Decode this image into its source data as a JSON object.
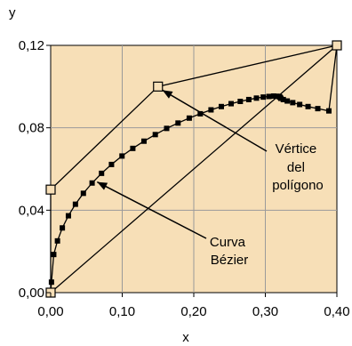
{
  "colors": {
    "plot_background": "#f7dfb7",
    "grid": "#9a9a9a",
    "line": "#000000",
    "vertex_fill": "#f7dfb7",
    "curve_marker": "#000000"
  },
  "chart_data": {
    "type": "line",
    "title": "",
    "xlabel": "x",
    "ylabel": "y",
    "xlim": [
      0.0,
      0.4
    ],
    "ylim": [
      0.0,
      0.12
    ],
    "grid": true,
    "x_ticks": [
      0.0,
      0.1,
      0.2,
      0.3,
      0.4
    ],
    "x_tick_labels": [
      "0,00",
      "0,10",
      "0,20",
      "0,30",
      "0,40"
    ],
    "y_ticks": [
      0.0,
      0.04,
      0.08,
      0.12
    ],
    "y_tick_labels": [
      "0,00",
      "0,04",
      "0,08",
      "0,12"
    ],
    "control_polygon": {
      "x": [
        0.0,
        0.0,
        0.15,
        0.4
      ],
      "y": [
        0.0,
        0.05,
        0.1,
        0.12
      ]
    },
    "chord": {
      "x": [
        0.0,
        0.4
      ],
      "y": [
        0.0,
        0.12
      ]
    },
    "bezier_curve": {
      "x": [
        0.0,
        0.0011,
        0.0043,
        0.0095,
        0.0163,
        0.0248,
        0.0346,
        0.0457,
        0.0579,
        0.0711,
        0.085,
        0.0997,
        0.1148,
        0.1304,
        0.1462,
        0.1621,
        0.178,
        0.1937,
        0.2091,
        0.2241,
        0.2385,
        0.2522,
        0.265,
        0.2769,
        0.2876,
        0.2971,
        0.3051,
        0.3116,
        0.3164,
        0.3195,
        0.3206,
        0.3217,
        0.3251,
        0.3306,
        0.3383,
        0.348,
        0.3597,
        0.3733,
        0.3888,
        0.4
      ],
      "y": [
        0.0,
        0.0051,
        0.0185,
        0.0251,
        0.0314,
        0.0373,
        0.0429,
        0.0482,
        0.0532,
        0.0579,
        0.0622,
        0.0663,
        0.07,
        0.0735,
        0.0767,
        0.0797,
        0.0823,
        0.0847,
        0.0868,
        0.0887,
        0.0903,
        0.0917,
        0.0928,
        0.0937,
        0.0944,
        0.0949,
        0.0952,
        0.0954,
        0.0953,
        0.0951,
        0.0948,
        0.0943,
        0.0937,
        0.093,
        0.0922,
        0.0913,
        0.0903,
        0.0893,
        0.0882,
        0.12
      ]
    },
    "annotations": [
      {
        "lines": [
          "Vértice",
          "del",
          "polígono"
        ],
        "points_to": {
          "x": 0.15,
          "y": 0.1
        }
      },
      {
        "lines": [
          "Curva",
          "Bézier"
        ],
        "points_to": {
          "x": 0.06,
          "y": 0.055
        }
      }
    ]
  }
}
